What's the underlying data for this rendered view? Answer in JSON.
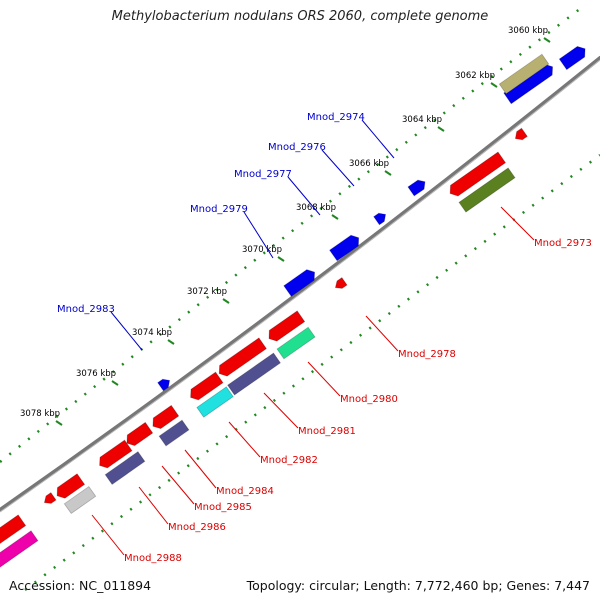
{
  "title": "Methylobacterium nodulans ORS 2060, complete genome",
  "footer": {
    "accession": "Accession: NC_011894",
    "summary": "Topology: circular; Length: 7,772,460 bp; Genes: 7,447"
  },
  "colors": {
    "backbone": "#888888",
    "forward_label": "#0000cc",
    "reverse_label": "#dd0000",
    "tick_dots": "#228822",
    "tick_label": "#000000"
  },
  "ticks": [
    {
      "label": "3060 kbp"
    },
    {
      "label": "3062 kbp"
    },
    {
      "label": "3064 kbp"
    },
    {
      "label": "3066 kbp"
    },
    {
      "label": "3068 kbp"
    },
    {
      "label": "3070 kbp"
    },
    {
      "label": "3072 kbp"
    },
    {
      "label": "3074 kbp"
    },
    {
      "label": "3076 kbp"
    },
    {
      "label": "3078 kbp"
    }
  ],
  "gene_labels": {
    "forward": [
      "Mnod_2974",
      "Mnod_2976",
      "Mnod_2977",
      "Mnod_2979",
      "Mnod_2983"
    ],
    "reverse": [
      "Mnod_2973",
      "Mnod_2978",
      "Mnod_2980",
      "Mnod_2981",
      "Mnod_2982",
      "Mnod_2984",
      "Mnod_2985",
      "Mnod_2986",
      "Mnod_2988"
    ]
  },
  "feature_colors": {
    "gene_forward": "#0000ee",
    "gene_reverse": "#ee0000",
    "cog_olive": "#b8b070",
    "cog_darkolive": "#5a8020",
    "cog_green": "#20e090",
    "cog_slate": "#505090",
    "cog_cyan": "#20e0e0",
    "cog_grey": "#c8c8c8",
    "cog_magenta": "#ee00aa"
  }
}
